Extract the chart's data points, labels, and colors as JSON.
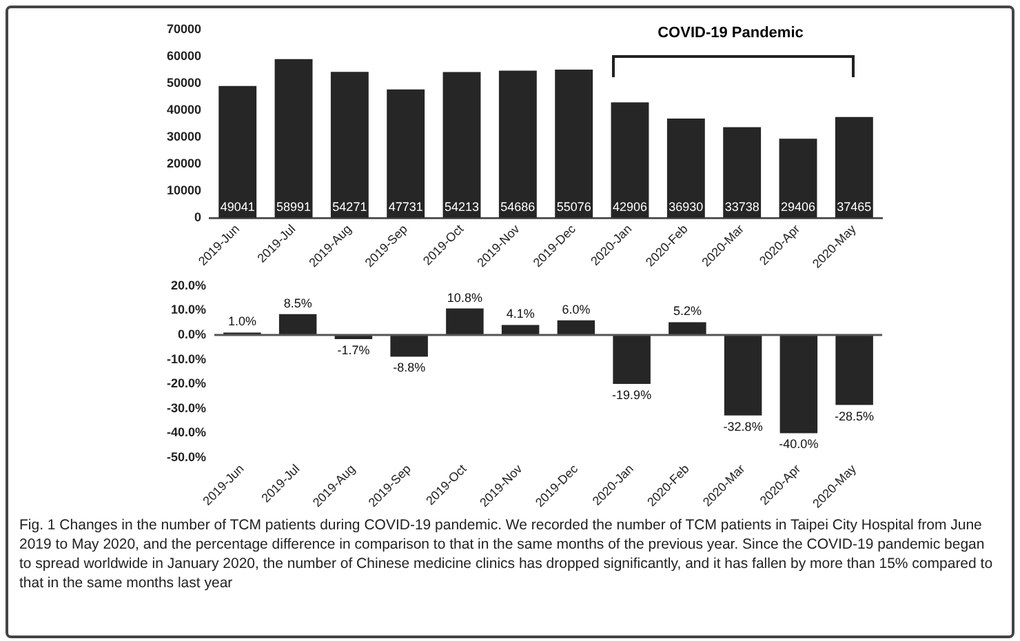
{
  "chart_data": [
    {
      "type": "bar",
      "categories": [
        "2019-Jun",
        "2019-Jul",
        "2019-Aug",
        "2019-Sep",
        "2019-Oct",
        "2019-Nov",
        "2019-Dec",
        "2020-Jan",
        "2020-Feb",
        "2020-Mar",
        "2020-Apr",
        "2020-May"
      ],
      "values": [
        49041,
        58991,
        54271,
        47731,
        54213,
        54686,
        55076,
        42906,
        36930,
        33738,
        29406,
        37465
      ],
      "color": "#262626",
      "ylim": [
        0,
        70000
      ],
      "yticks": [
        0,
        10000,
        20000,
        30000,
        40000,
        50000,
        60000,
        70000
      ],
      "grid": false,
      "legend": false,
      "data_labels": true,
      "annotations": [
        "COVID-19 Pandemic"
      ]
    },
    {
      "type": "bar",
      "categories": [
        "2019-Jun",
        "2019-Jul",
        "2019-Aug",
        "2019-Sep",
        "2019-Oct",
        "2019-Nov",
        "2019-Dec",
        "2020-Jan",
        "2020-Feb",
        "2020-Mar",
        "2020-Apr",
        "2020-May"
      ],
      "values": [
        1.0,
        8.5,
        -1.7,
        -8.8,
        10.8,
        4.1,
        6.0,
        -19.9,
        5.2,
        -32.8,
        -40.0,
        -28.5
      ],
      "value_labels": [
        "1.0%",
        "8.5%",
        "-1.7%",
        "-8.8%",
        "10.8%",
        "4.1%",
        "6.0%",
        "-19.9%",
        "5.2%",
        "-32.8%",
        "-40.0%",
        "-28.5%"
      ],
      "color": "#262626",
      "ylim": [
        -50,
        20
      ],
      "yticks": [
        {
          "value": -50,
          "label": "-50.0%"
        },
        {
          "value": -40,
          "label": "-40.0%"
        },
        {
          "value": -30,
          "label": "-30.0%"
        },
        {
          "value": -20,
          "label": "-20.0%"
        },
        {
          "value": -10,
          "label": "-10.0%"
        },
        {
          "value": 0,
          "label": "0.0%"
        },
        {
          "value": 10,
          "label": "10.0%"
        },
        {
          "value": 20,
          "label": "20.0%"
        }
      ],
      "grid": false,
      "legend": false,
      "ref_lines": [
        {
          "axis": "y",
          "value": 0
        }
      ],
      "annotations": [
        "Fig. 1 Changes in the number of TCM patients during COVID-19 pandemic. We recorded the number of TCM patients in Taipei City Hospital from June 2019 to May 2020, and the percentage difference in comparison to that in the same months of the previous year. Since the COVID-19 pandemic began to spread worldwide in January 2020, the number of Chinese medicine clinics has dropped significantly, and it has fallen by more than 15% compared to that in the same months last year"
      ]
    }
  ]
}
